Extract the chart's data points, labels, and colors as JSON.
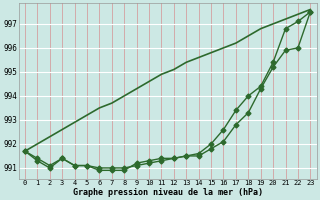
{
  "x": [
    0,
    1,
    2,
    3,
    4,
    5,
    6,
    7,
    8,
    9,
    10,
    11,
    12,
    13,
    14,
    15,
    16,
    17,
    18,
    19,
    20,
    21,
    22,
    23
  ],
  "line_steep": [
    991.7,
    992.0,
    992.3,
    992.6,
    992.9,
    993.2,
    993.5,
    993.7,
    994.0,
    994.3,
    994.6,
    994.9,
    995.1,
    995.4,
    995.6,
    995.8,
    996.0,
    996.2,
    996.5,
    996.8,
    997.0,
    997.2,
    997.4,
    997.6
  ],
  "line_mid": [
    991.7,
    991.4,
    991.1,
    991.4,
    991.1,
    991.1,
    991.0,
    991.0,
    991.0,
    991.1,
    991.2,
    991.3,
    991.4,
    991.5,
    991.6,
    992.0,
    992.6,
    993.4,
    994.0,
    994.4,
    995.4,
    996.8,
    997.1,
    997.5
  ],
  "line_flat": [
    991.7,
    991.3,
    991.0,
    991.4,
    991.1,
    991.1,
    990.9,
    990.9,
    990.9,
    991.2,
    991.3,
    991.4,
    991.4,
    991.5,
    991.5,
    991.8,
    992.1,
    992.8,
    993.3,
    994.3,
    995.2,
    995.9,
    996.0,
    997.5
  ],
  "ylim": [
    990.55,
    997.85
  ],
  "yticks": [
    991,
    992,
    993,
    994,
    995,
    996,
    997
  ],
  "xlabel": "Graphe pression niveau de la mer (hPa)",
  "line_color": "#2d6a2d",
  "bg_color": "#cce8e4",
  "grid_color_v": "#d4a0a0",
  "grid_color_h": "#ffffff",
  "marker": "D",
  "markersize": 2.5,
  "linewidth": 1.0,
  "steep_linewidth": 1.2,
  "steep_no_marker": true
}
